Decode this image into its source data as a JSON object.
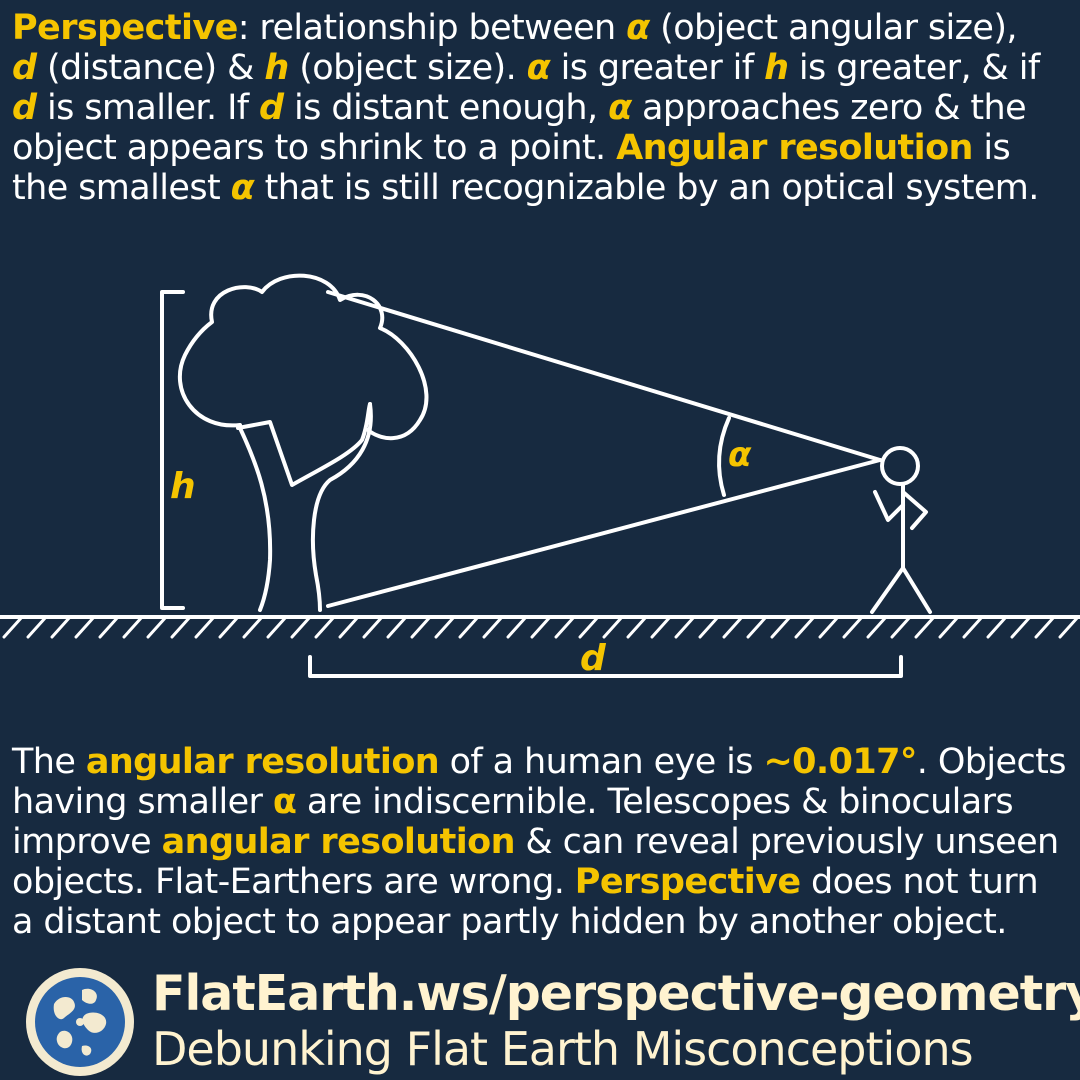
{
  "intro": {
    "t1": "Perspective",
    "t2": ": relationship between ",
    "t3": "α",
    "t4": " (object angular size),",
    "t5": "d",
    "t6": " (distance) & ",
    "t7": "h",
    "t8": " (object size). ",
    "t9": "α",
    "t10": " is greater if ",
    "t11": "h",
    "t12": " is greater, & if",
    "t13": "d",
    "t14": " is smaller. If ",
    "t15": "d",
    "t16": " is distant enough, ",
    "t17": "α",
    "t18": " approaches zero & the",
    "t19": "object appears to shrink to a point. ",
    "t20": "Angular resolution",
    "t21": " is",
    "t22": "the smallest ",
    "t23": "α",
    "t24": " that is still recognizable by an optical system."
  },
  "diagram": {
    "label_h": "h",
    "label_alpha": "α",
    "label_d": "d"
  },
  "outro": {
    "t1": "The ",
    "t2": "angular resolution",
    "t3": " of a human eye is ",
    "t4": "~0.017°",
    "t5": ". Objects",
    "t6": "having smaller ",
    "t7": "α",
    "t8": " are indiscernible. Telescopes & binoculars",
    "t9": "improve ",
    "t10": "angular resolution",
    "t11": " & can reveal previously unseen",
    "t12": "objects. Flat-Earthers are wrong. ",
    "t13": "Perspective",
    "t14": " does not turn",
    "t15": "a distant object to appear partly hidden by another object."
  },
  "footer": {
    "url": "FlatEarth.ws/perspective-geometry",
    "tagline": "Debunking Flat Earth Misconceptions"
  },
  "colors": {
    "background": "#172a40",
    "highlight": "#f5c400",
    "text": "#ffffff",
    "footer_text": "#fff3d0"
  }
}
